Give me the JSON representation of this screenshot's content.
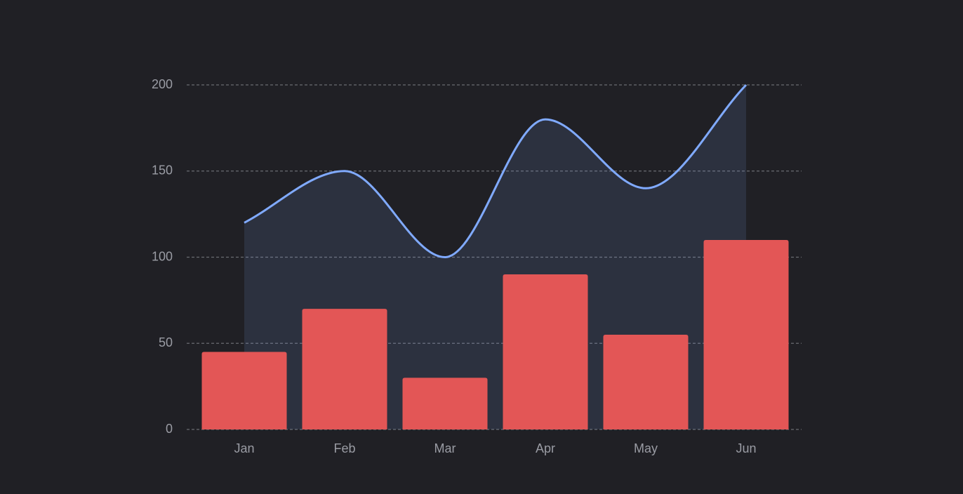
{
  "chart_data": {
    "type": "bar",
    "categories": [
      "Jan",
      "Feb",
      "Mar",
      "Apr",
      "May",
      "Jun"
    ],
    "series": [
      {
        "type": "line",
        "color": "#80aaff",
        "smooth": true,
        "area": true,
        "values": [
          120,
          150,
          100,
          180,
          140,
          200
        ]
      },
      {
        "type": "bar",
        "color": "#e35656",
        "values": [
          45,
          70,
          30,
          90,
          55,
          110
        ]
      }
    ],
    "ylim": [
      0,
      200
    ],
    "yticks": [
      0,
      50,
      100,
      150,
      200
    ],
    "grid": true
  }
}
